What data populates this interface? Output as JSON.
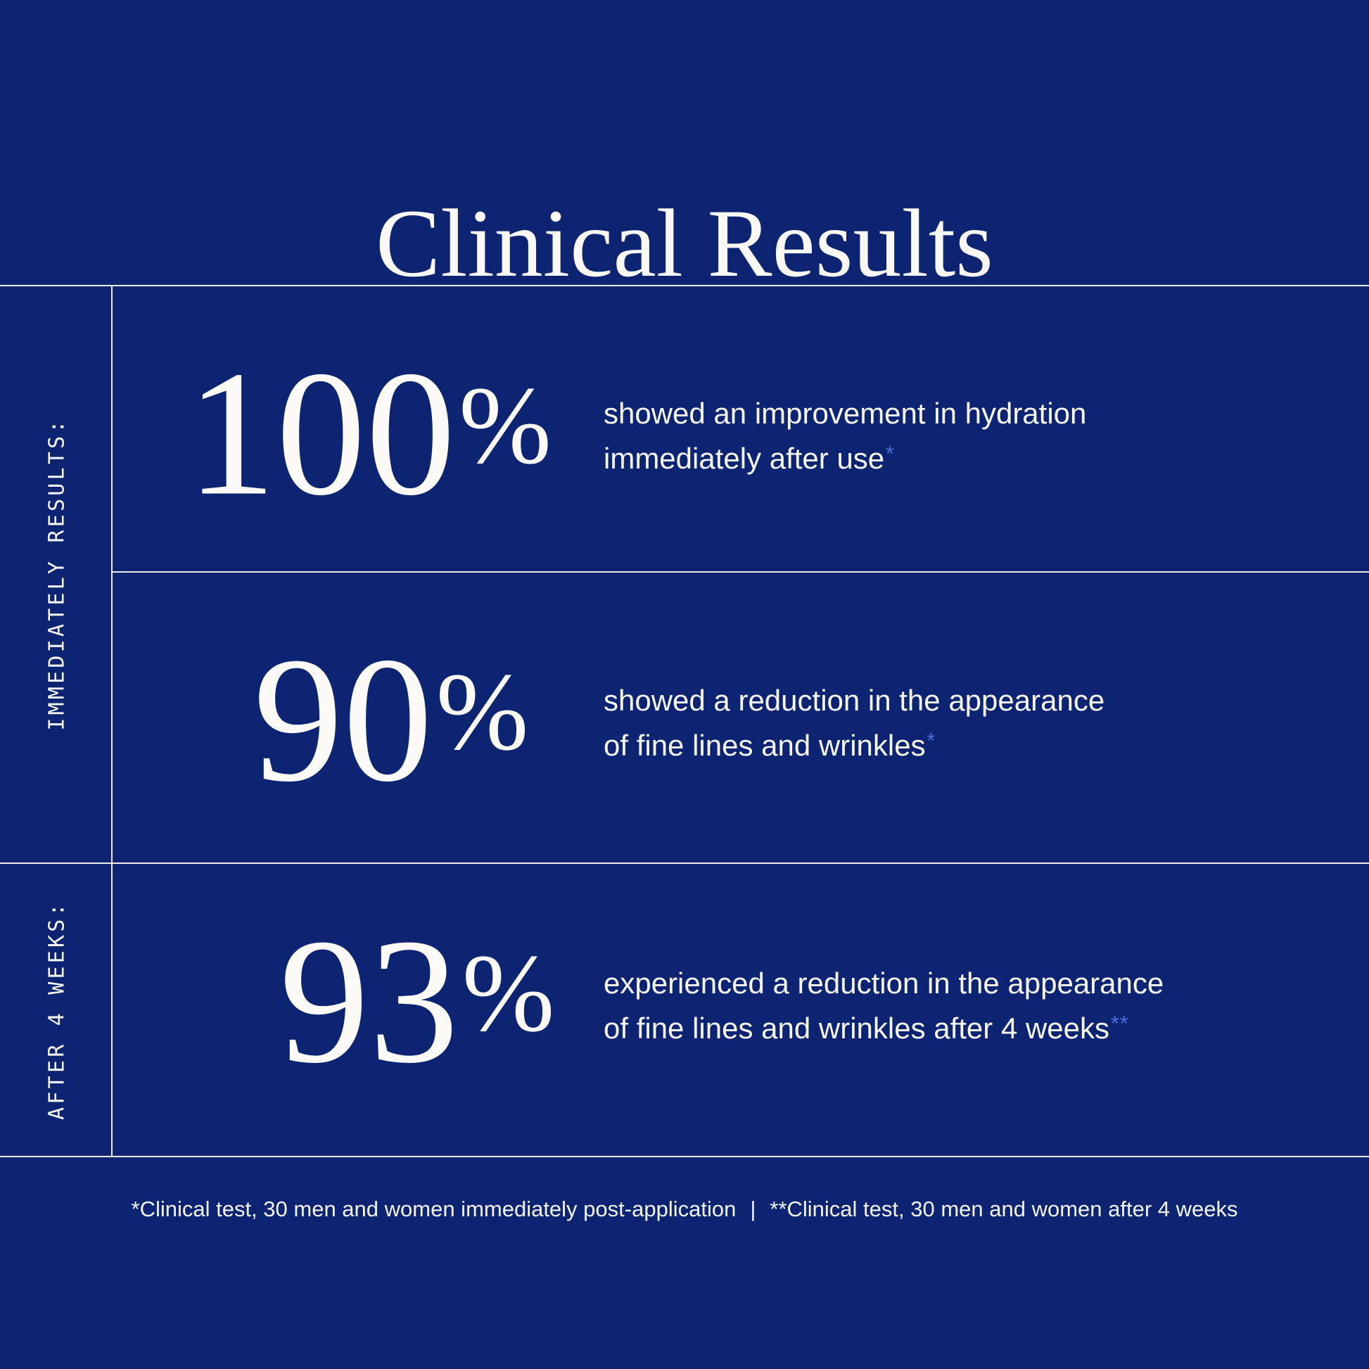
{
  "title": "Clinical Results",
  "colors": {
    "background": "#0d2472",
    "text": "#f7f6f1",
    "line": "#ecebe6",
    "footnote_marker_accent": "#4c6fd9"
  },
  "sidebar": {
    "section1_label": "IMMEDIATELY RESULTS:",
    "section2_label": "AFTER 4 WEEKS:"
  },
  "stats": [
    {
      "value": "100",
      "unit": "%",
      "description_line1": "showed an improvement in hydration",
      "description_line2": "immediately after use",
      "footnote_marker": "*"
    },
    {
      "value": "90",
      "unit": "%",
      "description_line1": "showed a reduction in the appearance",
      "description_line2": "of fine lines and wrinkles",
      "footnote_marker": "*"
    },
    {
      "value": "93",
      "unit": "%",
      "description_line1": "experienced a reduction in the appearance",
      "description_line2": "of fine lines and wrinkles after 4 weeks",
      "footnote_marker": "**"
    }
  ],
  "footnote": {
    "part1": "*Clinical test, 30 men and women immediately post-application",
    "separator": "|",
    "part2": "**Clinical test, 30 men and women after 4 weeks"
  }
}
